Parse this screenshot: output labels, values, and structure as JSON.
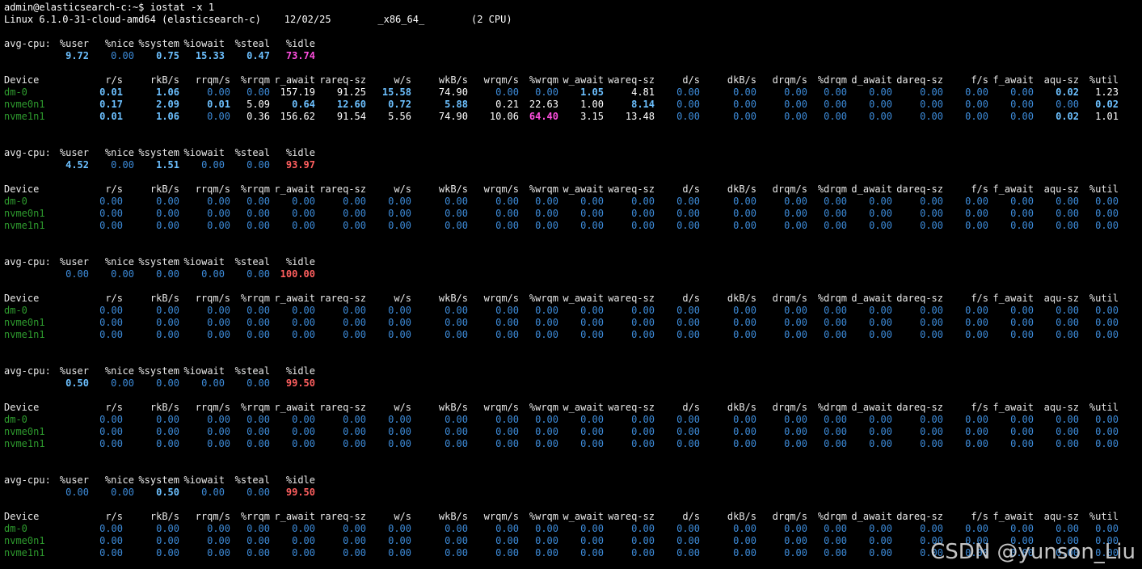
{
  "terminal": {
    "prompt": "admin@elasticsearch-c:~$ iostat -x 1",
    "sysinfo": "Linux 6.1.0-31-cloud-amd64 (elasticsearch-c)    12/02/25        _x86_64_        (2 CPU)"
  },
  "watermark": "CSDN @yunson_Liu",
  "cpu_label": "avg-cpu:",
  "cpu_headers": [
    "%user",
    "%nice",
    "%system",
    "%iowait",
    "%steal",
    "%idle"
  ],
  "device_headers": [
    "Device",
    "r/s",
    "rkB/s",
    "rrqm/s",
    "%rrqm",
    "r_await",
    "rareq-sz",
    "w/s",
    "wkB/s",
    "wrqm/s",
    "%wrqm",
    "w_await",
    "wareq-sz",
    "d/s",
    "dkB/s",
    "drqm/s",
    "%drqm",
    "d_await",
    "dareq-sz",
    "f/s",
    "f_await",
    "aqu-sz",
    "%util"
  ],
  "colors": {
    "background": "#000000",
    "device_name": "#2e9b2e",
    "zero_value": "#3d8bd9",
    "bold_value": "#6cc0ff",
    "high_value": "#ff4fe0",
    "idle_high": "#ff5f5f"
  },
  "samples": [
    {
      "cpu": [
        "9.72",
        "0.00",
        "0.75",
        "15.33",
        "0.47",
        "73.74"
      ],
      "cpu_style": [
        "bold",
        "blue",
        "bold",
        "bold",
        "bold",
        "pink"
      ],
      "devices": [
        {
          "name": "dm-0",
          "values": [
            "0.01",
            "1.06",
            "0.00",
            "0.00",
            "157.19",
            "91.25",
            "15.58",
            "74.90",
            "0.00",
            "0.00",
            "1.05",
            "4.81",
            "0.00",
            "0.00",
            "0.00",
            "0.00",
            "0.00",
            "0.00",
            "0.00",
            "0.00",
            "0.02",
            "1.23"
          ],
          "styles": [
            "bold",
            "bold",
            "blue",
            "blue",
            "w",
            "w",
            "bold",
            "w",
            "blue",
            "blue",
            "bold",
            "w",
            "blue",
            "blue",
            "blue",
            "blue",
            "blue",
            "blue",
            "blue",
            "blue",
            "bold",
            "w"
          ]
        },
        {
          "name": "nvme0n1",
          "values": [
            "0.17",
            "2.09",
            "0.01",
            "5.09",
            "0.64",
            "12.60",
            "0.72",
            "5.88",
            "0.21",
            "22.63",
            "1.00",
            "8.14",
            "0.00",
            "0.00",
            "0.00",
            "0.00",
            "0.00",
            "0.00",
            "0.00",
            "0.00",
            "0.00",
            "0.02"
          ],
          "styles": [
            "bold",
            "bold",
            "bold",
            "w",
            "bold",
            "bold",
            "bold",
            "bold",
            "w",
            "w",
            "w",
            "bold",
            "blue",
            "blue",
            "blue",
            "blue",
            "blue",
            "blue",
            "blue",
            "blue",
            "blue",
            "bold"
          ]
        },
        {
          "name": "nvme1n1",
          "values": [
            "0.01",
            "1.06",
            "0.00",
            "0.36",
            "156.62",
            "91.54",
            "5.56",
            "74.90",
            "10.06",
            "64.40",
            "3.15",
            "13.48",
            "0.00",
            "0.00",
            "0.00",
            "0.00",
            "0.00",
            "0.00",
            "0.00",
            "0.00",
            "0.02",
            "1.01"
          ],
          "styles": [
            "bold",
            "bold",
            "blue",
            "w",
            "w",
            "w",
            "w",
            "w",
            "w",
            "pink",
            "w",
            "w",
            "blue",
            "blue",
            "blue",
            "blue",
            "blue",
            "blue",
            "blue",
            "blue",
            "bold",
            "w"
          ]
        }
      ]
    },
    {
      "cpu": [
        "4.52",
        "0.00",
        "1.51",
        "0.00",
        "0.00",
        "93.97"
      ],
      "cpu_style": [
        "bold",
        "blue",
        "bold",
        "blue",
        "blue",
        "red"
      ],
      "devices": [
        {
          "name": "dm-0",
          "values": [
            "0.00",
            "0.00",
            "0.00",
            "0.00",
            "0.00",
            "0.00",
            "0.00",
            "0.00",
            "0.00",
            "0.00",
            "0.00",
            "0.00",
            "0.00",
            "0.00",
            "0.00",
            "0.00",
            "0.00",
            "0.00",
            "0.00",
            "0.00",
            "0.00",
            "0.00"
          ]
        },
        {
          "name": "nvme0n1",
          "values": [
            "0.00",
            "0.00",
            "0.00",
            "0.00",
            "0.00",
            "0.00",
            "0.00",
            "0.00",
            "0.00",
            "0.00",
            "0.00",
            "0.00",
            "0.00",
            "0.00",
            "0.00",
            "0.00",
            "0.00",
            "0.00",
            "0.00",
            "0.00",
            "0.00",
            "0.00"
          ]
        },
        {
          "name": "nvme1n1",
          "values": [
            "0.00",
            "0.00",
            "0.00",
            "0.00",
            "0.00",
            "0.00",
            "0.00",
            "0.00",
            "0.00",
            "0.00",
            "0.00",
            "0.00",
            "0.00",
            "0.00",
            "0.00",
            "0.00",
            "0.00",
            "0.00",
            "0.00",
            "0.00",
            "0.00",
            "0.00"
          ]
        }
      ]
    },
    {
      "cpu": [
        "0.00",
        "0.00",
        "0.00",
        "0.00",
        "0.00",
        "100.00"
      ],
      "cpu_style": [
        "blue",
        "blue",
        "blue",
        "blue",
        "blue",
        "red"
      ],
      "devices": [
        {
          "name": "dm-0",
          "values": [
            "0.00",
            "0.00",
            "0.00",
            "0.00",
            "0.00",
            "0.00",
            "0.00",
            "0.00",
            "0.00",
            "0.00",
            "0.00",
            "0.00",
            "0.00",
            "0.00",
            "0.00",
            "0.00",
            "0.00",
            "0.00",
            "0.00",
            "0.00",
            "0.00",
            "0.00"
          ]
        },
        {
          "name": "nvme0n1",
          "values": [
            "0.00",
            "0.00",
            "0.00",
            "0.00",
            "0.00",
            "0.00",
            "0.00",
            "0.00",
            "0.00",
            "0.00",
            "0.00",
            "0.00",
            "0.00",
            "0.00",
            "0.00",
            "0.00",
            "0.00",
            "0.00",
            "0.00",
            "0.00",
            "0.00",
            "0.00"
          ]
        },
        {
          "name": "nvme1n1",
          "values": [
            "0.00",
            "0.00",
            "0.00",
            "0.00",
            "0.00",
            "0.00",
            "0.00",
            "0.00",
            "0.00",
            "0.00",
            "0.00",
            "0.00",
            "0.00",
            "0.00",
            "0.00",
            "0.00",
            "0.00",
            "0.00",
            "0.00",
            "0.00",
            "0.00",
            "0.00"
          ]
        }
      ]
    },
    {
      "cpu": [
        "0.50",
        "0.00",
        "0.00",
        "0.00",
        "0.00",
        "99.50"
      ],
      "cpu_style": [
        "bold",
        "blue",
        "blue",
        "blue",
        "blue",
        "red"
      ],
      "devices": [
        {
          "name": "dm-0",
          "values": [
            "0.00",
            "0.00",
            "0.00",
            "0.00",
            "0.00",
            "0.00",
            "0.00",
            "0.00",
            "0.00",
            "0.00",
            "0.00",
            "0.00",
            "0.00",
            "0.00",
            "0.00",
            "0.00",
            "0.00",
            "0.00",
            "0.00",
            "0.00",
            "0.00",
            "0.00"
          ]
        },
        {
          "name": "nvme0n1",
          "values": [
            "0.00",
            "0.00",
            "0.00",
            "0.00",
            "0.00",
            "0.00",
            "0.00",
            "0.00",
            "0.00",
            "0.00",
            "0.00",
            "0.00",
            "0.00",
            "0.00",
            "0.00",
            "0.00",
            "0.00",
            "0.00",
            "0.00",
            "0.00",
            "0.00",
            "0.00"
          ]
        },
        {
          "name": "nvme1n1",
          "values": [
            "0.00",
            "0.00",
            "0.00",
            "0.00",
            "0.00",
            "0.00",
            "0.00",
            "0.00",
            "0.00",
            "0.00",
            "0.00",
            "0.00",
            "0.00",
            "0.00",
            "0.00",
            "0.00",
            "0.00",
            "0.00",
            "0.00",
            "0.00",
            "0.00",
            "0.00"
          ]
        }
      ]
    },
    {
      "cpu": [
        "0.00",
        "0.00",
        "0.50",
        "0.00",
        "0.00",
        "99.50"
      ],
      "cpu_style": [
        "blue",
        "blue",
        "bold",
        "blue",
        "blue",
        "red"
      ],
      "devices": [
        {
          "name": "dm-0",
          "values": [
            "0.00",
            "0.00",
            "0.00",
            "0.00",
            "0.00",
            "0.00",
            "0.00",
            "0.00",
            "0.00",
            "0.00",
            "0.00",
            "0.00",
            "0.00",
            "0.00",
            "0.00",
            "0.00",
            "0.00",
            "0.00",
            "0.00",
            "0.00",
            "0.00",
            "0.00"
          ]
        },
        {
          "name": "nvme0n1",
          "values": [
            "0.00",
            "0.00",
            "0.00",
            "0.00",
            "0.00",
            "0.00",
            "0.00",
            "0.00",
            "0.00",
            "0.00",
            "0.00",
            "0.00",
            "0.00",
            "0.00",
            "0.00",
            "0.00",
            "0.00",
            "0.00",
            "0.00",
            "0.00",
            "0.00",
            "0.00"
          ]
        },
        {
          "name": "nvme1n1",
          "values": [
            "0.00",
            "0.00",
            "0.00",
            "0.00",
            "0.00",
            "0.00",
            "0.00",
            "0.00",
            "0.00",
            "0.00",
            "0.00",
            "0.00",
            "0.00",
            "0.00",
            "0.00",
            "0.00",
            "0.00",
            "0.00",
            "0.00",
            "0.00",
            "0.00",
            "0.00"
          ]
        }
      ]
    }
  ]
}
